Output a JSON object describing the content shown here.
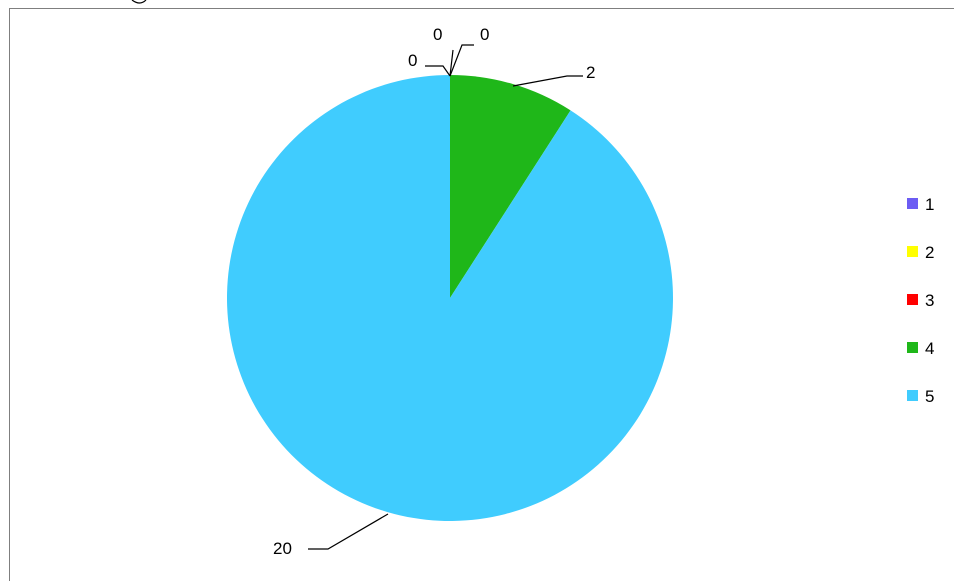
{
  "chart_data": {
    "type": "pie",
    "categories": [
      "1",
      "2",
      "3",
      "4",
      "5"
    ],
    "values": [
      0,
      0,
      0,
      2,
      20
    ],
    "colors": [
      "#6c5cf3",
      "#ffff00",
      "#ff0000",
      "#1fb719",
      "#40ccfe"
    ],
    "data_labels": [
      "0",
      "0",
      "0",
      "2",
      "20"
    ],
    "legend_placement": "right",
    "start_angle_deg": 0,
    "direction": "clockwise"
  }
}
